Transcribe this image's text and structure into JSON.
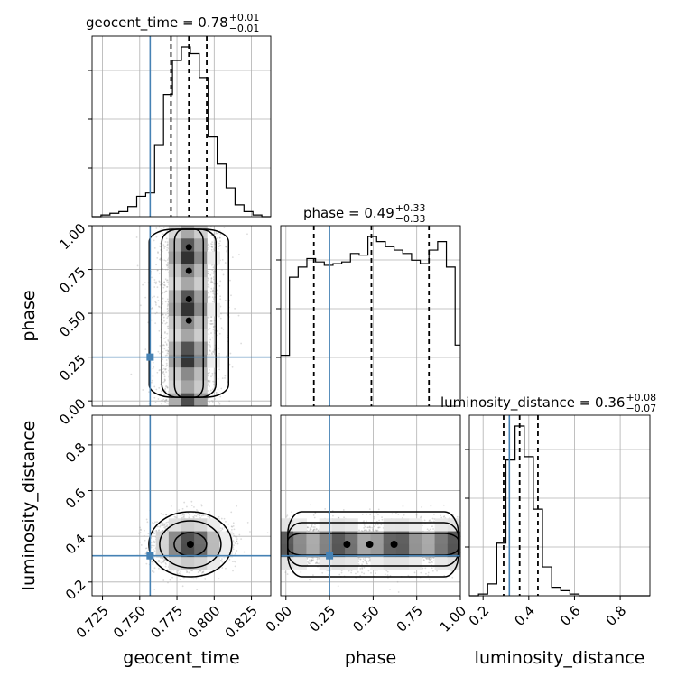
{
  "chart_data": {
    "type": "corner",
    "parameters": [
      "geocent_time",
      "phase",
      "luminosity_distance"
    ],
    "axes": {
      "geocent_time": {
        "range": [
          0.718,
          0.838
        ],
        "ticks": [
          0.725,
          0.75,
          0.775,
          0.8,
          0.825
        ],
        "tick_labels": [
          "0.725",
          "0.750",
          "0.775",
          "0.800",
          "0.825"
        ]
      },
      "phase": {
        "range": [
          -0.03,
          1.0
        ],
        "ticks": [
          0.0,
          0.25,
          0.5,
          0.75,
          1.0
        ],
        "tick_labels": [
          "0.00",
          "0.25",
          "0.50",
          "0.75",
          "1.00"
        ]
      },
      "luminosity_distance": {
        "range": [
          0.14,
          0.93
        ],
        "ticks": [
          0.2,
          0.4,
          0.6,
          0.8
        ],
        "tick_labels": [
          "0.2",
          "0.4",
          "0.6",
          "0.8"
        ]
      }
    },
    "titles": [
      {
        "param": "geocent_time",
        "text": "geocent_time = 0.78",
        "plus": "+0.01",
        "minus": "−0.01"
      },
      {
        "param": "phase",
        "text": "phase = 0.49",
        "plus": "+0.33",
        "minus": "−0.33"
      },
      {
        "param": "luminosity_distance",
        "text": "luminosity_distance = 0.36",
        "plus": "+0.08",
        "minus": "−0.07"
      }
    ],
    "truths": {
      "geocent_time": 0.757,
      "phase": 0.25,
      "luminosity_distance": 0.315
    },
    "quantiles": {
      "geocent_time": [
        0.771,
        0.783,
        0.795
      ],
      "phase": [
        0.16,
        0.49,
        0.82
      ],
      "luminosity_distance": [
        0.29,
        0.36,
        0.44
      ]
    },
    "histograms": {
      "geocent_time": {
        "edges": [
          0.718,
          0.724,
          0.73,
          0.736,
          0.742,
          0.748,
          0.754,
          0.76,
          0.766,
          0.772,
          0.778,
          0.784,
          0.79,
          0.796,
          0.802,
          0.808,
          0.814,
          0.82,
          0.826,
          0.832,
          0.838
        ],
        "counts": [
          0,
          0.01,
          0.02,
          0.03,
          0.06,
          0.12,
          0.14,
          0.42,
          0.72,
          0.92,
          1.0,
          0.96,
          0.82,
          0.47,
          0.31,
          0.17,
          0.07,
          0.03,
          0.01,
          0
        ]
      },
      "phase": {
        "edges": [
          -0.03,
          0.02,
          0.07,
          0.12,
          0.17,
          0.22,
          0.27,
          0.32,
          0.37,
          0.42,
          0.47,
          0.52,
          0.57,
          0.62,
          0.67,
          0.72,
          0.77,
          0.82,
          0.87,
          0.92,
          0.97,
          1.0
        ],
        "counts": [
          0.3,
          0.76,
          0.82,
          0.87,
          0.85,
          0.83,
          0.84,
          0.85,
          0.9,
          0.89,
          1.0,
          0.97,
          0.94,
          0.92,
          0.9,
          0.86,
          0.84,
          0.92,
          0.97,
          0.82,
          0.36
        ]
      },
      "luminosity_distance": {
        "edges": [
          0.14,
          0.18,
          0.22,
          0.26,
          0.3,
          0.34,
          0.38,
          0.42,
          0.46,
          0.5,
          0.54,
          0.58,
          0.62,
          0.66,
          0.7,
          0.74,
          0.78,
          0.82,
          0.86,
          0.9,
          0.93
        ],
        "counts": [
          0,
          0.01,
          0.07,
          0.31,
          0.8,
          1.0,
          0.82,
          0.51,
          0.17,
          0.05,
          0.03,
          0.01,
          0,
          0,
          0,
          0,
          0,
          0,
          0,
          0
        ]
      }
    },
    "joint_centers": {
      "geocent_time_vs_phase": {
        "x": 0.783,
        "y_range": [
          0.0,
          1.0
        ]
      },
      "geocent_time_vs_luminosity_distance": {
        "x": 0.784,
        "y": 0.365
      },
      "phase_vs_luminosity_distance": {
        "x_range": [
          0.0,
          1.0
        ],
        "y": 0.365
      }
    },
    "grid": true,
    "colors": {
      "truth": "#4682b4",
      "hist": "#000000",
      "points": "#9a9a9a",
      "grid": "#b0b0b0"
    }
  }
}
